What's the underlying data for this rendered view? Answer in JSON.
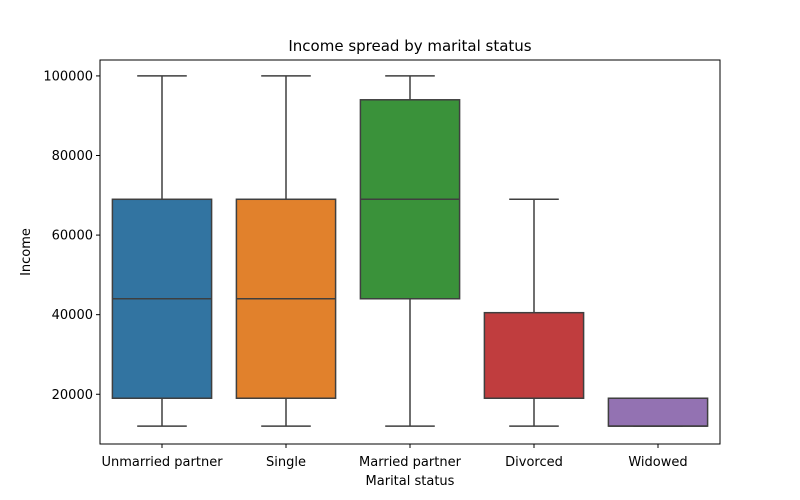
{
  "chart_data": {
    "type": "box",
    "title": "Income spread by marital status",
    "xlabel": "Marital status",
    "ylabel": "Income",
    "ylim": [
      7500,
      104000
    ],
    "yticks": [
      20000,
      40000,
      60000,
      80000,
      100000
    ],
    "grid": false,
    "categories": [
      "Unmarried partner",
      "Single",
      "Married partner",
      "Divorced",
      "Widowed"
    ],
    "boxes": [
      {
        "category": "Unmarried partner",
        "min": 12000,
        "q1": 19000,
        "median": 44000,
        "q3": 69000,
        "max": 100000,
        "color": "#3274a1"
      },
      {
        "category": "Single",
        "min": 12000,
        "q1": 19000,
        "median": 44000,
        "q3": 69000,
        "max": 100000,
        "color": "#e1812c"
      },
      {
        "category": "Married partner",
        "min": 12000,
        "q1": 44000,
        "median": 69000,
        "q3": 94000,
        "max": 100000,
        "color": "#3a923a"
      },
      {
        "category": "Divorced",
        "min": 12000,
        "q1": 19000,
        "median": 19000,
        "q3": 40500,
        "max": 69000,
        "color": "#c03d3e"
      },
      {
        "category": "Widowed",
        "min": 12000,
        "q1": 12000,
        "median": 12000,
        "q3": 19000,
        "max": 19000,
        "color": "#9372b2"
      }
    ]
  }
}
